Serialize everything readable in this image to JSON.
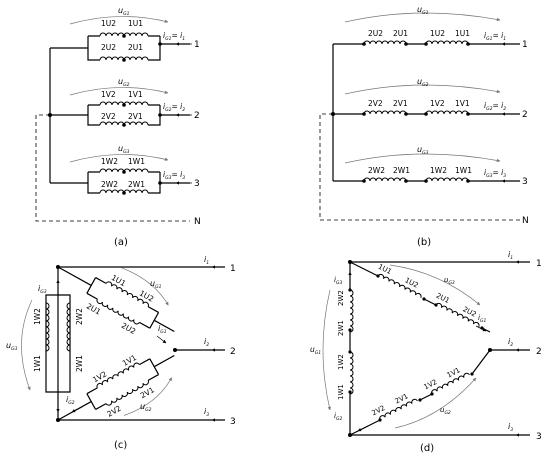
{
  "panels": {
    "a": {
      "caption": "(a)",
      "phases": [
        {
          "num": "1",
          "w1": "1U2",
          "w2": "1U1",
          "w3": "2U2",
          "w4": "2U1",
          "u": "u",
          "u_sub": "G1",
          "i": "i",
          "i_sub": "G1",
          "eq": "= i",
          "eq_sub": "1"
        },
        {
          "num": "2",
          "w1": "1V2",
          "w2": "1V1",
          "w3": "2V2",
          "w4": "2V1",
          "u": "u",
          "u_sub": "G2",
          "i": "i",
          "i_sub": "G2",
          "eq": "= i",
          "eq_sub": "2"
        },
        {
          "num": "3",
          "w1": "1W2",
          "w2": "1W1",
          "w3": "2W2",
          "w4": "2W1",
          "u": "u",
          "u_sub": "G3",
          "i": "i",
          "i_sub": "G3",
          "eq": "= i",
          "eq_sub": "3"
        }
      ],
      "neutral": "N"
    },
    "b": {
      "caption": "(b)",
      "phases": [
        {
          "num": "1",
          "w1": "2U2",
          "w2": "2U1",
          "w3": "1U2",
          "w4": "1U1",
          "u": "u",
          "u_sub": "G1",
          "i": "i",
          "i_sub": "G1",
          "eq": "= i",
          "eq_sub": "1"
        },
        {
          "num": "2",
          "w1": "2V2",
          "w2": "2V1",
          "w3": "1V2",
          "w4": "1V1",
          "u": "u",
          "u_sub": "G2",
          "i": "i",
          "i_sub": "G2",
          "eq": "= i",
          "eq_sub": "2"
        },
        {
          "num": "3",
          "w1": "2W2",
          "w2": "2W1",
          "w3": "1W2",
          "w4": "1W1",
          "u": "u",
          "u_sub": "G3",
          "i": "i",
          "i_sub": "G3",
          "eq": "= i",
          "eq_sub": "3"
        }
      ],
      "neutral": "N"
    },
    "c": {
      "caption": "(c)",
      "terminals": [
        "1",
        "2",
        "3"
      ],
      "line_currents": [
        {
          "t": "i",
          "s": "1"
        },
        {
          "t": "i",
          "s": "2"
        },
        {
          "t": "i",
          "s": "3"
        }
      ],
      "phase_currents": [
        {
          "t": "i",
          "s": "G3"
        },
        {
          "t": "i",
          "s": "G1"
        },
        {
          "t": "i",
          "s": "G2"
        }
      ],
      "voltages": [
        {
          "t": "u",
          "s": "G1"
        },
        {
          "t": "u",
          "s": "G2"
        },
        {
          "t": "u",
          "s": "G3"
        }
      ],
      "top": {
        "o1": "1U1",
        "o2": "1U2",
        "i1": "2U1",
        "i2": "2U2"
      },
      "bottom": {
        "o1": "1V2",
        "o2": "1V1",
        "i1": "2V2",
        "i2": "2V1"
      },
      "left": {
        "o1": "1W2",
        "o2": "1W1",
        "i1": "2W2",
        "i2": "2W1"
      }
    },
    "d": {
      "caption": "(d)",
      "terminals": [
        "1",
        "2",
        "3"
      ],
      "line_currents": [
        {
          "t": "i",
          "s": "1"
        },
        {
          "t": "i",
          "s": "2"
        },
        {
          "t": "i",
          "s": "3"
        }
      ],
      "phase_currents": [
        {
          "t": "i",
          "s": "G3"
        },
        {
          "t": "i",
          "s": "G1"
        },
        {
          "t": "i",
          "s": "G2"
        }
      ],
      "voltages": [
        {
          "t": "u",
          "s": "G1"
        },
        {
          "t": "u",
          "s": "G2"
        },
        {
          "t": "u",
          "s": "G3"
        }
      ],
      "top": [
        "1U1",
        "1U2",
        "2U1",
        "2U2"
      ],
      "bottom": [
        "2V2",
        "2V1",
        "1V2",
        "1V1"
      ],
      "left": [
        "2W2",
        "2W1",
        "1W2",
        "1W1"
      ]
    }
  }
}
